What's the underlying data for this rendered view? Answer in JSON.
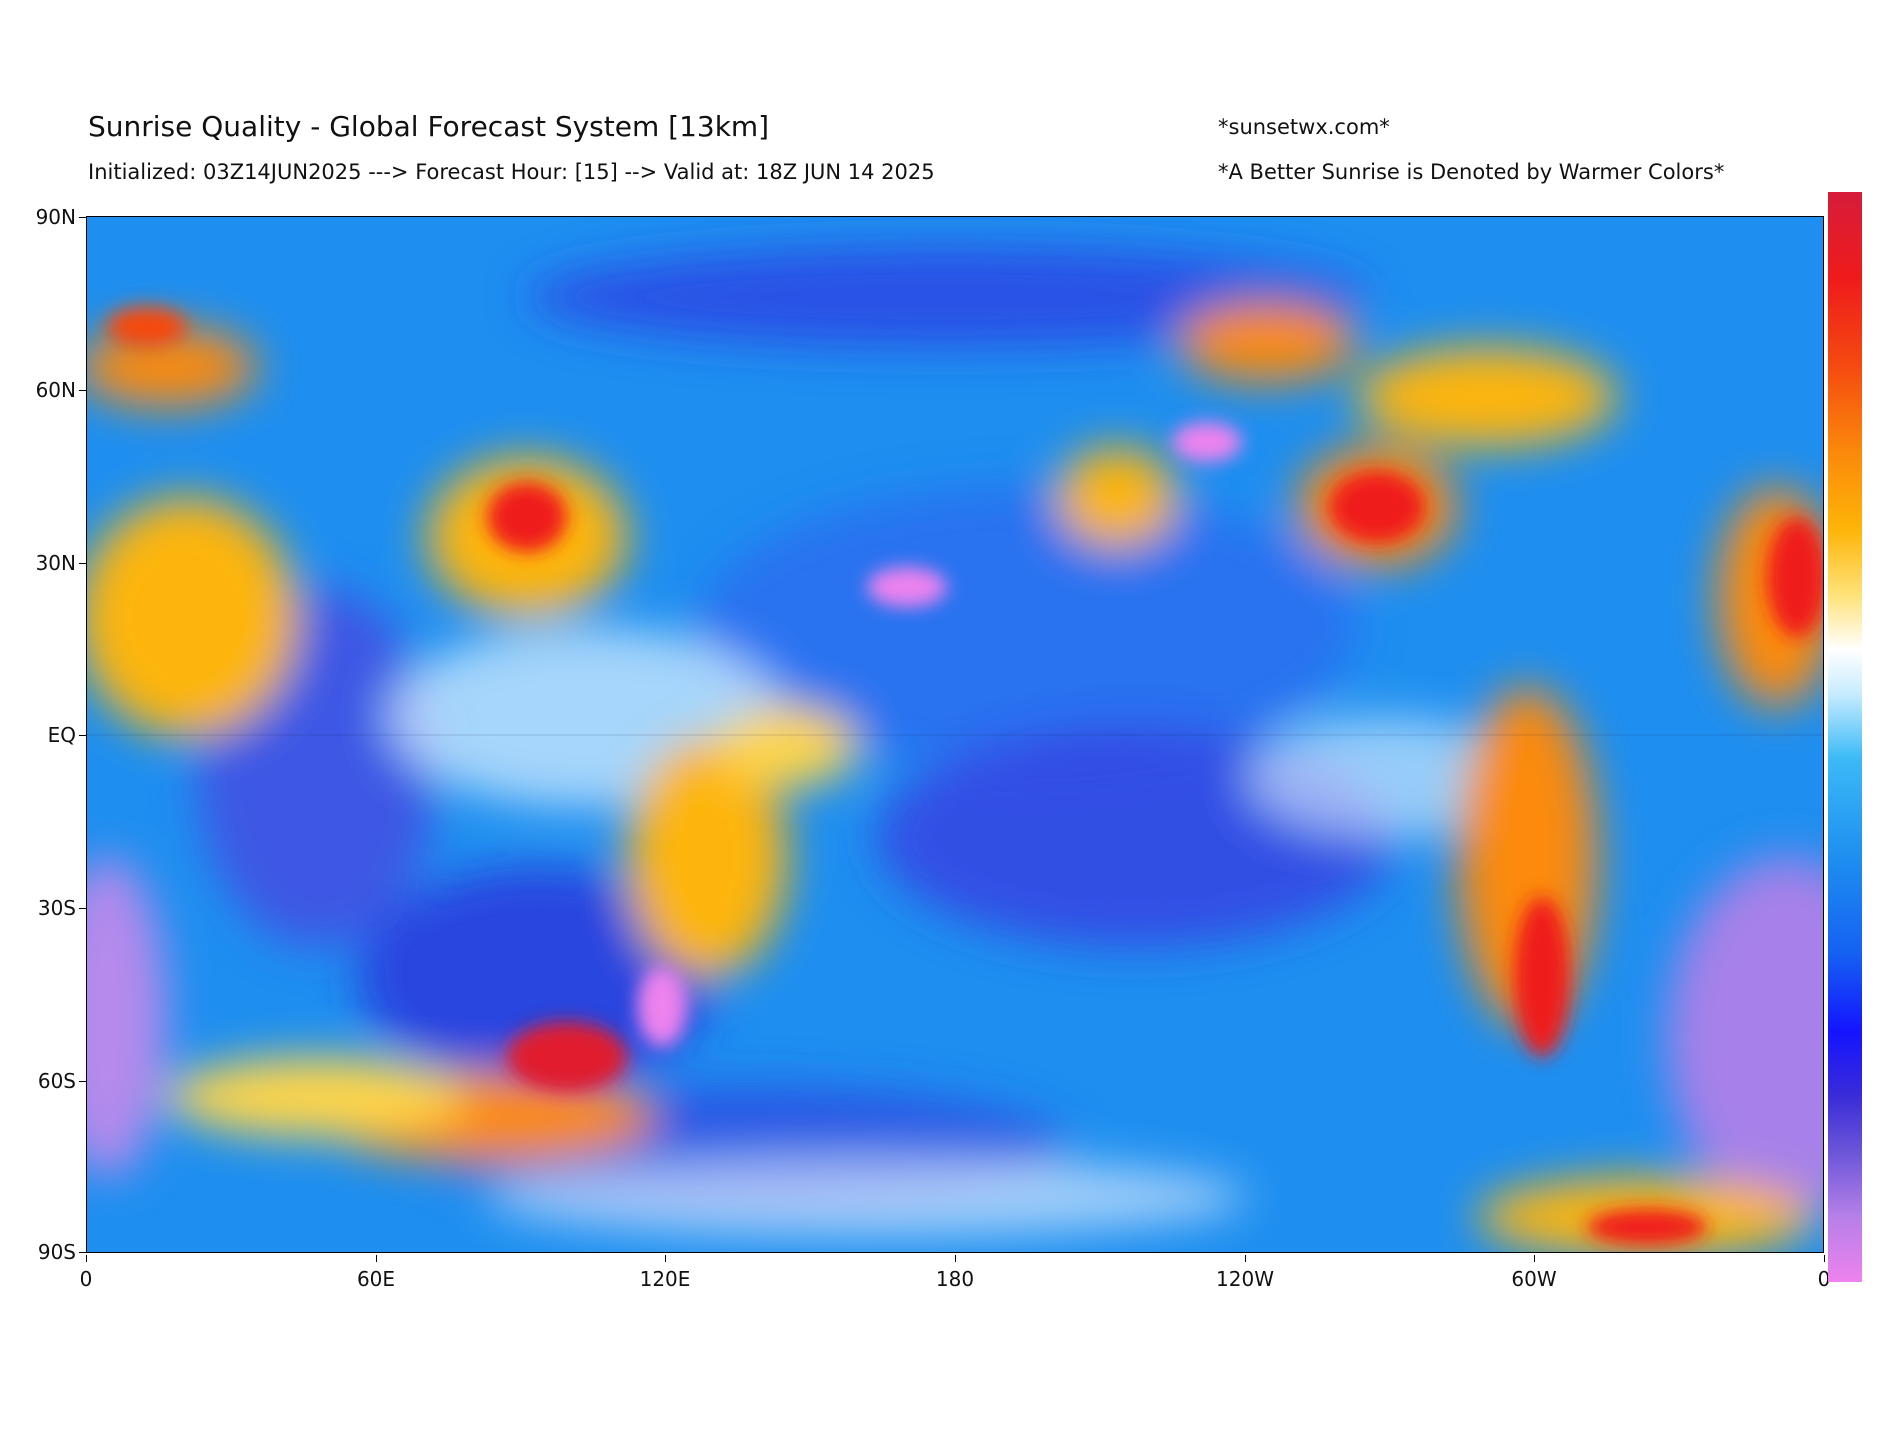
{
  "header": {
    "title": "Sunrise Quality - Global Forecast System [13km]",
    "subtitle": "Initialized: 03Z14JUN2025 ---> Forecast Hour: [15] --> Valid at: 18Z JUN 14 2025",
    "site": "*sunsetwx.com*",
    "note": "*A Better Sunrise is Denoted by Warmer Colors*"
  },
  "map": {
    "projection": "equirectangular",
    "lon_range": [
      0,
      360
    ],
    "lat_range": [
      -90,
      90
    ],
    "y_ticks": [
      "90N",
      "60N",
      "30N",
      "EQ",
      "30S",
      "60S",
      "90S"
    ],
    "x_ticks": [
      "0",
      "60E",
      "120E",
      "180",
      "120W",
      "60W",
      "0"
    ]
  },
  "colorbar": {
    "orientation": "vertical",
    "top_color": "#d61c3a",
    "bottom_color": "#ee82ee"
  },
  "colors": {
    "ocean_base": "#1e8ff0",
    "warm": "#fdb508",
    "hot": "#ef1b1b",
    "cool": "#1414ff",
    "violet": "#ee82ee"
  }
}
